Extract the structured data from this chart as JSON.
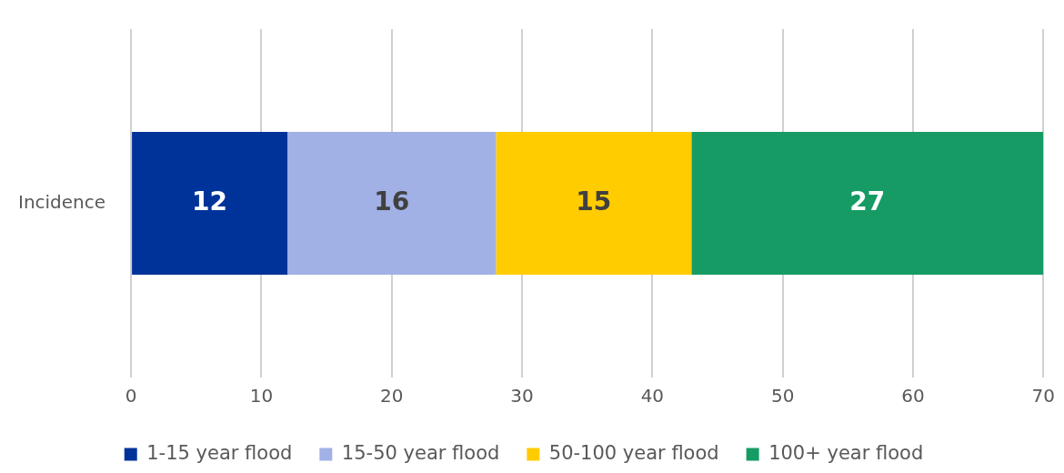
{
  "chart_data": {
    "type": "bar",
    "orientation": "horizontal",
    "stacked": true,
    "categories": [
      "Incidence"
    ],
    "series": [
      {
        "name": "1-15 year flood",
        "color": "#00339a",
        "values": [
          12
        ]
      },
      {
        "name": "15-50 year flood",
        "color": "#a1b1e6",
        "values": [
          16
        ]
      },
      {
        "name": "50-100 year flood",
        "color": "#ffcc00",
        "values": [
          15
        ]
      },
      {
        "name": "100+ year flood",
        "color": "#169b65",
        "values": [
          27
        ]
      }
    ],
    "xlim": [
      0,
      70
    ],
    "xticks": [
      0,
      10,
      20,
      30,
      40,
      50,
      60,
      70
    ],
    "grid": "x",
    "legend": "bottom",
    "data_labels": true
  }
}
